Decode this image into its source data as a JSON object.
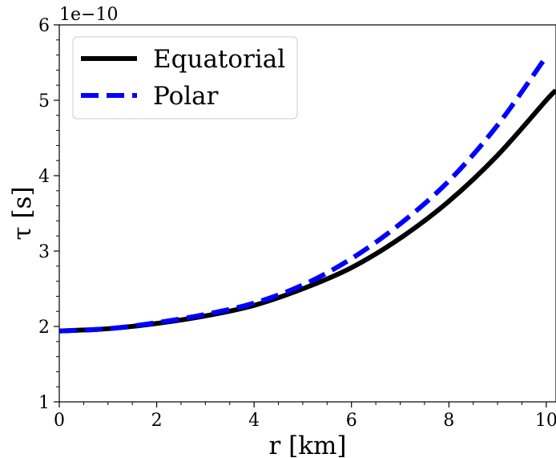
{
  "chart_data": {
    "type": "line",
    "xlabel": "r [km]",
    "ylabel": "τ [s]",
    "y_offset_label": "1e−10",
    "xlim": [
      0,
      10.2
    ],
    "ylim": [
      1,
      6
    ],
    "x_ticks": [
      0,
      2,
      4,
      6,
      8,
      10
    ],
    "x_tick_labels": [
      "0",
      "2",
      "4",
      "6",
      "8",
      "10"
    ],
    "y_ticks": [
      1,
      2,
      3,
      4,
      5,
      6
    ],
    "y_tick_labels": [
      "1",
      "2",
      "3",
      "4",
      "5",
      "6"
    ],
    "x_minor_step": 0.5,
    "y_minor_step": 0.2,
    "grid": false,
    "legend_position": "top-left",
    "series": [
      {
        "name": "Equatorial",
        "color": "#000000",
        "style": "solid",
        "x": [
          0,
          1,
          2,
          3,
          4,
          5,
          6,
          7,
          8,
          9,
          10,
          10.2
        ],
        "y": [
          1.94,
          1.97,
          2.04,
          2.14,
          2.28,
          2.5,
          2.78,
          3.17,
          3.66,
          4.27,
          5.0,
          5.13
        ]
      },
      {
        "name": "Polar",
        "color": "#0000ff",
        "style": "dashed",
        "x": [
          0,
          1,
          2,
          3,
          4,
          5,
          6,
          7,
          8,
          9,
          10
        ],
        "y": [
          1.94,
          1.97,
          2.05,
          2.16,
          2.31,
          2.55,
          2.9,
          3.36,
          3.93,
          4.67,
          5.58
        ]
      }
    ]
  }
}
